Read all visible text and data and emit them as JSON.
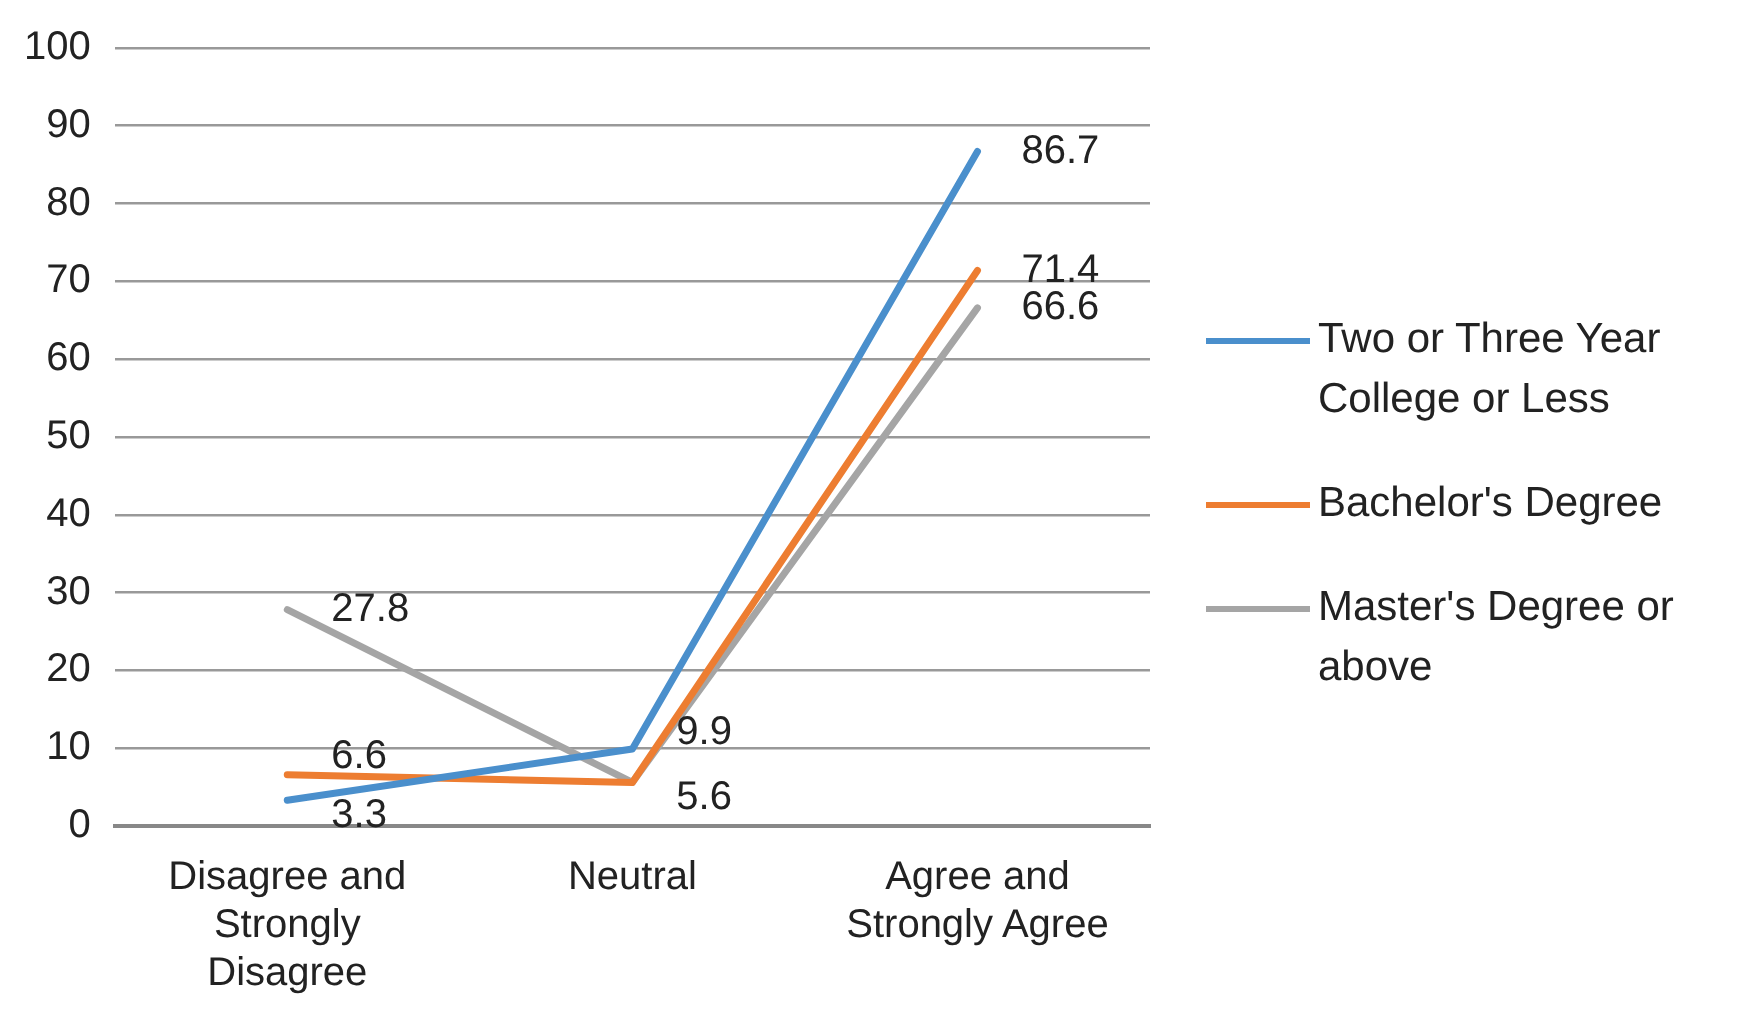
{
  "chart_data": {
    "type": "line",
    "categories": [
      "Disagree and Strongly Disagree",
      "Neutral",
      "Agree and Strongly Agree"
    ],
    "series": [
      {
        "name": "Two or Three Year College or Less",
        "color": "#4a8fcc",
        "values": [
          3.3,
          9.9,
          86.7
        ],
        "value_labels": [
          "3.3",
          "9.9",
          "86.7"
        ]
      },
      {
        "name": "Bachelor's Degree",
        "color": "#ed7d31",
        "values": [
          6.6,
          5.6,
          71.4
        ],
        "value_labels": [
          "6.6",
          null,
          "71.4"
        ]
      },
      {
        "name": "Master's Degree or above",
        "color": "#a5a5a5",
        "values": [
          27.8,
          5.6,
          66.6
        ],
        "value_labels": [
          "27.8",
          "5.6",
          "66.6"
        ]
      }
    ],
    "ylim": [
      0,
      100
    ],
    "yticks": [
      0,
      10,
      20,
      30,
      40,
      50,
      60,
      70,
      80,
      90,
      100
    ],
    "grid": "y",
    "legend": "right",
    "marker": "none",
    "line_style": "solid"
  }
}
